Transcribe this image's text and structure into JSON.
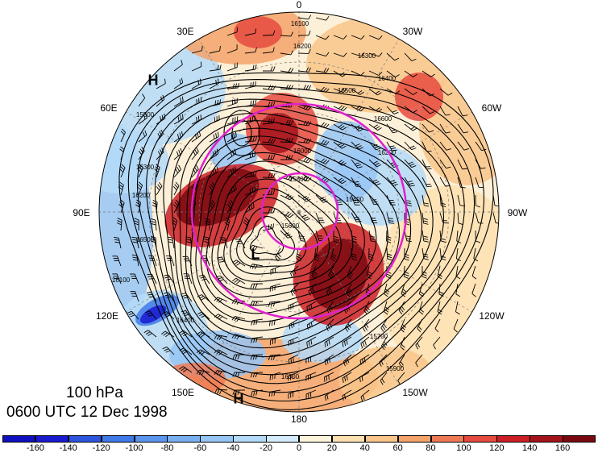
{
  "map": {
    "pressure_level": "100 hPa",
    "valid_time": "0600 UTC 12 Dec 1998",
    "longitude_labels": [
      {
        "name": "lon-0",
        "text": "0"
      },
      {
        "name": "lon-30w",
        "text": "30W"
      },
      {
        "name": "lon-60w",
        "text": "60W"
      },
      {
        "name": "lon-90w",
        "text": "90W"
      },
      {
        "name": "lon-120w",
        "text": "120W"
      },
      {
        "name": "lon-150w",
        "text": "150W"
      },
      {
        "name": "lon-180",
        "text": "180"
      },
      {
        "name": "lon-150e",
        "text": "150E"
      },
      {
        "name": "lon-120e",
        "text": "120E"
      },
      {
        "name": "lon-90e",
        "text": "90E"
      },
      {
        "name": "lon-60e",
        "text": "60E"
      },
      {
        "name": "lon-30e",
        "text": "30E"
      }
    ],
    "pressure_centers": [
      {
        "name": "high-center-east-asia",
        "text": "H"
      },
      {
        "name": "low-center-polar",
        "text": "L"
      },
      {
        "name": "high-center-pacific",
        "text": "H"
      }
    ],
    "contour_labels": [
      "16100",
      "16200",
      "16300",
      "16400",
      "16500",
      "16600",
      "16200",
      "16000",
      "15800",
      "15600",
      "15500",
      "15400",
      "16300",
      "16200",
      "16100",
      "16400",
      "16500",
      "15700",
      "15900",
      "16300"
    ],
    "colorbar": {
      "ticks": [
        "-160",
        "-140",
        "-120",
        "-100",
        "-80",
        "-60",
        "-40",
        "-20",
        "0",
        "20",
        "40",
        "60",
        "80",
        "100",
        "120",
        "140",
        "160"
      ],
      "colors": [
        "#1a1ad0",
        "#2d55e0",
        "#3f7ae8",
        "#5a96ee",
        "#78b0f2",
        "#96c6f6",
        "#b4daf9",
        "#d4ecfc",
        "#fdf4dc",
        "#fde0b0",
        "#f9c58a",
        "#f4a36a",
        "#ee7a55",
        "#e64a40",
        "#cc1e24",
        "#a4121a",
        "#7a0810"
      ]
    },
    "accent_colors": {
      "contour": "#000000",
      "jet_circle": "#e020d0",
      "graticule": "#7a7a7a"
    }
  }
}
